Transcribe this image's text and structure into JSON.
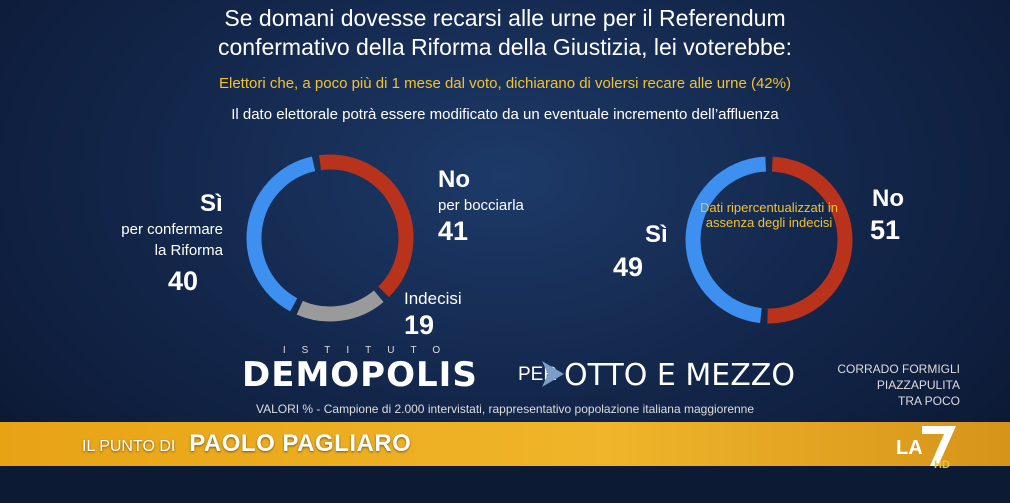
{
  "title_line1": "Se domani dovesse recarsi alle urne per il Referendum",
  "title_line2": "confermativo della Riforma della Giustizia, lei voterebbe:",
  "subtitle_yellow": "Elettori che, a poco più di 1 mese dal voto, dichiarano di volersi recare alle urne (42%)",
  "subtitle_white": "Il dato elettorale potrà essere modificato da un eventuale incremento dell’affluenza",
  "colors": {
    "si": "#3d8ff0",
    "no": "#b8321c",
    "indecisi": "#9a9a9a",
    "accent": "#f2c230",
    "band": "#f0b52a"
  },
  "chart_data": [
    {
      "type": "pie",
      "labels": [
        "Sì",
        "No",
        "Indecisi"
      ],
      "values": [
        40,
        41,
        19
      ],
      "annotations": {
        "si": "per confermare la Riforma",
        "no": "per bocciarla"
      }
    },
    {
      "type": "pie",
      "labels": [
        "Sì",
        "No"
      ],
      "values": [
        49,
        51
      ],
      "center_note": "Dati ripercentualizzati in assenza degli indecisi"
    }
  ],
  "labels": {
    "si_title": "Sì",
    "si_sub1": "per confermare",
    "si_sub2": "la Riforma",
    "si_value": "40",
    "no_title": "No",
    "no_sub": "per bocciarla",
    "no_value": "41",
    "ind_title": "Indecisi",
    "ind_value": "19",
    "r_si_title": "Sì",
    "r_si_value": "49",
    "r_no_title": "No",
    "r_no_value": "51",
    "center_note": "Dati ripercentualizzati in assenza degli indecisi"
  },
  "logo": {
    "istituto": "ISTITUTO",
    "demopolis": "DEMOPOLIS",
    "per": "PER",
    "show": "OTTO E MEZZO"
  },
  "side_info": {
    "line1": "CORRADO FORMIGLI",
    "line2": "PIAZZAPULITA",
    "line3": "TRA POCO"
  },
  "footnote": "VALORI % - Campione di 2.000 intervistati, rappresentativo popolazione italiana maggiorenne",
  "band": {
    "prefix": "IL PUNTO DI",
    "name": "PAOLO PAGLIARO"
  },
  "channel": {
    "name": "LA7",
    "hd": "HD"
  }
}
